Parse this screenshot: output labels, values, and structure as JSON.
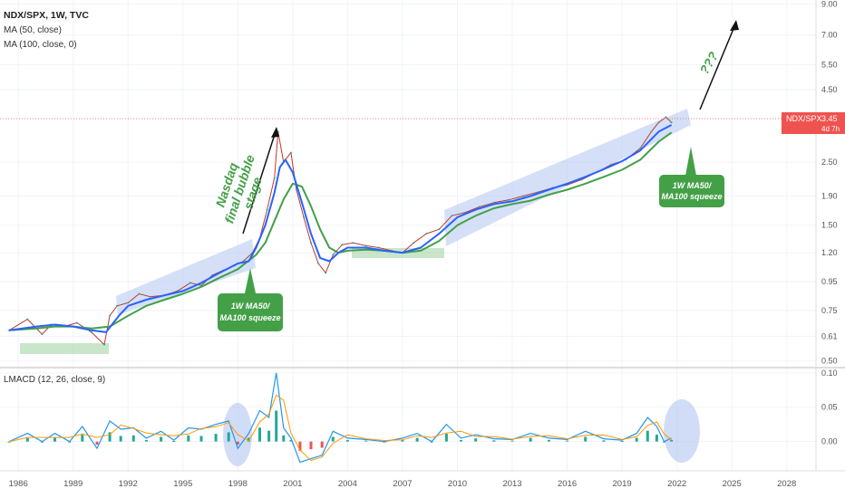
{
  "header": {
    "title": "NDX/SPX, 1W, TVC",
    "ma50_legend": "MA (50, close)",
    "ma100_legend": "MA (100, close, 0)",
    "lmacd_legend": "LMACD (12, 26, close, 9)"
  },
  "price_badge": {
    "name": "NDX/SPX",
    "value": "3.45",
    "countdown": "4d 7h",
    "color": "#ef5350"
  },
  "annotations": {
    "nasdaq_bubble_lines": [
      "Nasdaq",
      "final bubble",
      "stage"
    ],
    "callout_1998_lines": [
      "1W MA50/",
      "MA100 squeeze"
    ],
    "callout_2021_lines": [
      "1W MA50/",
      "MA100 squeeze"
    ],
    "question": "???"
  },
  "colors": {
    "ma50": "#2962ff",
    "ma100": "#43a047",
    "channel": "#b3c6f2",
    "accumulation": "#a5d6a7",
    "callout": "#43a047",
    "hist_pos": "#26a69a",
    "hist_neg": "#ef5350",
    "macd": "#2196f3",
    "signal": "#ff9800"
  },
  "chart_data": [
    {
      "type": "line",
      "panel": "price",
      "scale": "log",
      "y_ticks": [
        "9.00",
        "7.00",
        "5.50",
        "4.50",
        "3.45",
        "2.50",
        "1.90",
        "1.50",
        "1.20",
        "0.95",
        "0.75",
        "0.61",
        "0.50"
      ],
      "x_ticks": [
        "1986",
        "1989",
        "1992",
        "1995",
        "1998",
        "2001",
        "2004",
        "2007",
        "2010",
        "2013",
        "2016",
        "2019",
        "2022",
        "2025",
        "2028"
      ],
      "ylim": [
        0.48,
        9.3
      ],
      "xlim": [
        1985.0,
        2029.6
      ],
      "series": [
        {
          "name": "MA (50, close)",
          "x": [
            1985.5,
            1987,
            1988,
            1989,
            1990,
            1990.8,
            1991.5,
            1992,
            1993,
            1994,
            1995,
            1996,
            1997,
            1998,
            1998.6,
            1999,
            1999.5,
            2000,
            2000.3,
            2000.6,
            2001,
            2001.5,
            2002,
            2002.5,
            2003,
            2003.5,
            2004,
            2005,
            2006,
            2007,
            2008,
            2009,
            2010,
            2011,
            2012,
            2013,
            2014,
            2015,
            2016,
            2017,
            2018,
            2019,
            2020,
            2021,
            2021.7
          ],
          "values": [
            0.64,
            0.66,
            0.67,
            0.66,
            0.64,
            0.63,
            0.72,
            0.78,
            0.82,
            0.85,
            0.88,
            0.94,
            1.02,
            1.1,
            1.12,
            1.25,
            1.5,
            1.95,
            2.4,
            2.55,
            2.3,
            1.8,
            1.4,
            1.15,
            1.12,
            1.2,
            1.25,
            1.25,
            1.22,
            1.2,
            1.25,
            1.4,
            1.6,
            1.7,
            1.78,
            1.82,
            1.9,
            2.0,
            2.1,
            2.22,
            2.36,
            2.52,
            2.75,
            3.2,
            3.38
          ]
        },
        {
          "name": "MA (100, close, 0)",
          "x": [
            1985.5,
            1987,
            1988,
            1989,
            1990,
            1991,
            1992,
            1993,
            1994,
            1995,
            1996,
            1997,
            1998,
            1999,
            1999.5,
            2000,
            2000.5,
            2001,
            2001.5,
            2002,
            2002.5,
            2003,
            2003.5,
            2004,
            2005,
            2006,
            2007,
            2008,
            2009,
            2010,
            2011,
            2012,
            2013,
            2014,
            2015,
            2016,
            2017,
            2018,
            2019,
            2020,
            2021,
            2021.7
          ],
          "values": [
            0.64,
            0.65,
            0.66,
            0.66,
            0.65,
            0.66,
            0.72,
            0.78,
            0.82,
            0.86,
            0.91,
            0.98,
            1.05,
            1.18,
            1.3,
            1.55,
            1.85,
            2.1,
            2.05,
            1.75,
            1.45,
            1.25,
            1.2,
            1.22,
            1.23,
            1.22,
            1.2,
            1.22,
            1.32,
            1.5,
            1.62,
            1.72,
            1.78,
            1.83,
            1.92,
            2.0,
            2.1,
            2.22,
            2.35,
            2.55,
            2.95,
            3.18
          ]
        },
        {
          "name": "NDX/SPX",
          "x": [
            1985.5,
            1986.5,
            1987.3,
            1987.8,
            1988.5,
            1989.2,
            1990,
            1990.7,
            1991,
            1991.4,
            1992,
            1992.6,
            1993.2,
            1994,
            1994.7,
            1995.4,
            1996,
            1996.6,
            1997.2,
            1997.8,
            1998.3,
            1998.8,
            1999.2,
            1999.6,
            2000,
            2000.2,
            2000.5,
            2000.9,
            2001.2,
            2001.6,
            2002,
            2002.4,
            2002.8,
            2003.2,
            2003.7,
            2004.3,
            2005,
            2005.7,
            2006.4,
            2007,
            2007.6,
            2008.3,
            2009,
            2009.7,
            2010.4,
            2011.2,
            2012,
            2012.8,
            2013.6,
            2014.4,
            2015.2,
            2016,
            2016.8,
            2017.6,
            2018.4,
            2019.2,
            2020,
            2020.6,
            2021,
            2021.4,
            2021.7
          ],
          "values": [
            0.64,
            0.7,
            0.62,
            0.67,
            0.66,
            0.68,
            0.63,
            0.57,
            0.72,
            0.78,
            0.8,
            0.86,
            0.84,
            0.85,
            0.88,
            0.94,
            0.92,
            1.0,
            1.04,
            1.08,
            1.12,
            1.2,
            1.35,
            1.7,
            2.2,
            3.2,
            2.5,
            2.7,
            2.0,
            1.6,
            1.3,
            1.1,
            1.02,
            1.18,
            1.28,
            1.3,
            1.27,
            1.25,
            1.22,
            1.2,
            1.3,
            1.4,
            1.45,
            1.62,
            1.66,
            1.74,
            1.8,
            1.84,
            1.9,
            1.96,
            2.03,
            2.08,
            2.17,
            2.3,
            2.45,
            2.55,
            2.8,
            3.2,
            3.45,
            3.6,
            3.45
          ]
        }
      ]
    },
    {
      "type": "bar",
      "panel": "lmacd",
      "title": "LMACD (12, 26, close, 9)",
      "y_ticks": [
        "0.10",
        "0.05",
        "0.00"
      ],
      "ylim": [
        -0.04,
        0.105
      ],
      "series": [
        {
          "name": "MACD",
          "x": [
            1985.5,
            1986.5,
            1987.3,
            1988,
            1988.8,
            1989.5,
            1990.3,
            1991,
            1991.6,
            1992.3,
            1993,
            1993.8,
            1994.5,
            1995.3,
            1996,
            1996.8,
            1997.5,
            1998,
            1998.6,
            1999.2,
            1999.7,
            2000.1,
            2000.5,
            2000.9,
            2001.4,
            2002,
            2002.6,
            2003.2,
            2004,
            2005,
            2006,
            2007,
            2007.8,
            2008.6,
            2009.4,
            2010.2,
            2011,
            2012,
            2013,
            2014,
            2015,
            2016,
            2017,
            2018,
            2019,
            2019.8,
            2020.4,
            2020.9,
            2021.3,
            2021.7
          ],
          "values": [
            0.0,
            0.012,
            0.0,
            0.012,
            0.0,
            0.022,
            -0.01,
            0.03,
            0.018,
            0.02,
            0.005,
            0.015,
            0.002,
            0.02,
            0.018,
            0.025,
            0.03,
            -0.01,
            0.012,
            0.045,
            0.035,
            0.1,
            0.02,
            0.005,
            -0.03,
            -0.025,
            -0.02,
            0.015,
            0.005,
            0.003,
            0.0,
            0.005,
            0.012,
            0.0,
            0.025,
            0.005,
            0.01,
            0.004,
            0.003,
            0.012,
            0.005,
            0.003,
            0.015,
            0.004,
            0.002,
            0.012,
            0.035,
            0.022,
            0.0,
            0.005
          ]
        }
      ]
    }
  ]
}
